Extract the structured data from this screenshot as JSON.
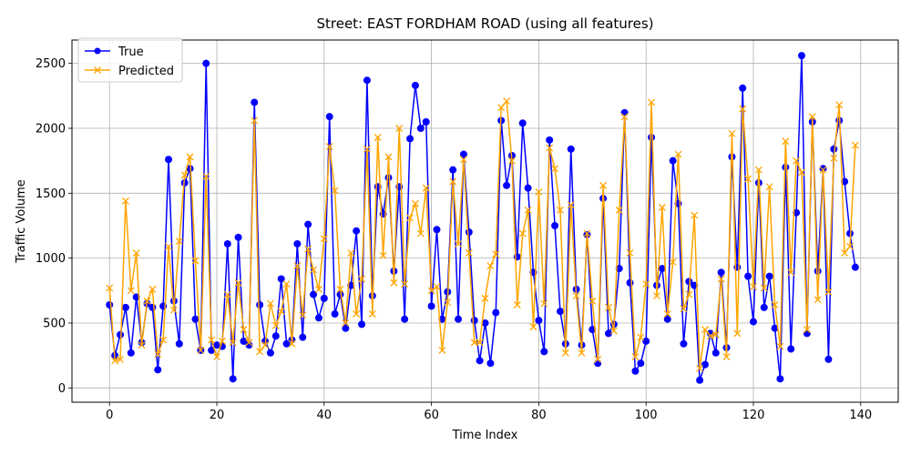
{
  "chart_data": {
    "type": "line",
    "title": "Street: EAST FORDHAM ROAD (using all features)",
    "xlabel": "Time Index",
    "ylabel": "Traffic Volume",
    "xlim": [
      -7,
      147
    ],
    "ylim": [
      -110,
      2680
    ],
    "xticks": [
      0,
      20,
      40,
      60,
      80,
      100,
      120,
      140
    ],
    "yticks": [
      0,
      500,
      1000,
      1500,
      2000,
      2500
    ],
    "grid": true,
    "legend_position": "top-left",
    "series": [
      {
        "name": "True",
        "color": "#0000ff",
        "marker": "circle",
        "values": [
          640,
          250,
          410,
          620,
          270,
          700,
          350,
          650,
          620,
          140,
          630,
          1760,
          670,
          340,
          1580,
          1690,
          530,
          290,
          2500,
          290,
          330,
          320,
          1110,
          70,
          1160,
          360,
          330,
          2200,
          640,
          360,
          270,
          400,
          840,
          340,
          370,
          1110,
          390,
          1260,
          720,
          540,
          690,
          2090,
          570,
          720,
          460,
          790,
          1210,
          490,
          2370,
          710,
          1550,
          1340,
          1620,
          900,
          1550,
          530,
          1920,
          2330,
          2000,
          2050,
          630,
          1220,
          530,
          740,
          1680,
          530,
          1800,
          1200,
          520,
          210,
          500,
          190,
          580,
          2060,
          1560,
          1790,
          1010,
          2040,
          1540,
          890,
          520,
          280,
          1910,
          1250,
          590,
          340,
          1840,
          760,
          330,
          1180,
          450,
          190,
          1460,
          420,
          490,
          920,
          2120,
          810,
          130,
          190,
          360,
          1930,
          790,
          920,
          530,
          1750,
          1420,
          340,
          820,
          790,
          60,
          180,
          420,
          270,
          890,
          310,
          1780,
          930,
          2310,
          860,
          510,
          1580,
          620,
          860,
          460,
          70,
          1700,
          300,
          1350,
          2560,
          420,
          2050,
          900,
          1690,
          220,
          1840,
          2060,
          1590,
          1190,
          930
        ]
      },
      {
        "name": "Predicted",
        "color": "#ffa500",
        "marker": "x",
        "values": [
          770,
          210,
          220,
          1440,
          750,
          1040,
          330,
          670,
          760,
          260,
          370,
          1090,
          600,
          1130,
          1640,
          1780,
          980,
          290,
          1630,
          370,
          240,
          360,
          720,
          350,
          810,
          450,
          350,
          2060,
          280,
          330,
          650,
          480,
          590,
          800,
          340,
          940,
          560,
          1070,
          910,
          760,
          1150,
          1860,
          1520,
          760,
          500,
          1040,
          570,
          840,
          1840,
          570,
          1930,
          1020,
          1780,
          810,
          2000,
          800,
          1310,
          1420,
          1190,
          1540,
          750,
          780,
          290,
          660,
          1590,
          1110,
          1760,
          1040,
          350,
          350,
          690,
          940,
          1030,
          2160,
          2210,
          1750,
          640,
          1190,
          1370,
          470,
          1510,
          650,
          1850,
          1690,
          1370,
          270,
          1410,
          710,
          270,
          1190,
          670,
          220,
          1560,
          620,
          440,
          1370,
          2090,
          1040,
          240,
          390,
          800,
          2200,
          710,
          1390,
          570,
          970,
          1800,
          610,
          720,
          1330,
          150,
          450,
          400,
          410,
          840,
          240,
          1960,
          420,
          2150,
          1610,
          780,
          1680,
          770,
          1550,
          640,
          320,
          1900,
          890,
          1750,
          1660,
          450,
          2090,
          680,
          1680,
          740,
          1770,
          2180,
          1040,
          1090,
          1870
        ]
      }
    ]
  }
}
